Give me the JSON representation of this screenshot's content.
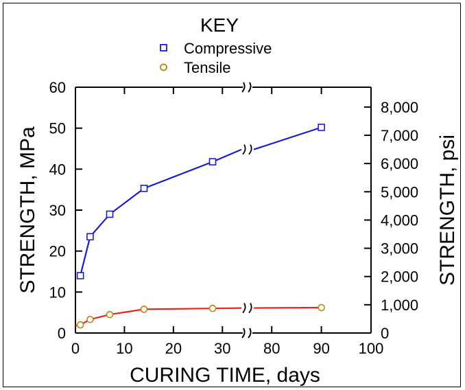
{
  "chart_data": {
    "type": "line",
    "legend": {
      "title": "KEY",
      "placement": "top-center",
      "entries": [
        {
          "label": "Compressive",
          "marker": "square",
          "color": "#1a1ad6"
        },
        {
          "label": "Tensile",
          "marker": "circle",
          "color": "#b8860b"
        }
      ]
    },
    "xlabel": "CURING TIME, days",
    "ylabel_left": "STRENGTH, MPa",
    "ylabel_right": "STRENGTH, psi",
    "x_axis_break": true,
    "xticks": [
      {
        "value": 0,
        "label": "0"
      },
      {
        "value": 10,
        "label": "10"
      },
      {
        "value": 20,
        "label": "20"
      },
      {
        "value": 30,
        "label": "30"
      },
      {
        "value": 80,
        "label": "80"
      },
      {
        "value": 90,
        "label": "90"
      },
      {
        "value": 100,
        "label": "100"
      }
    ],
    "ylim_left": [
      0,
      60
    ],
    "yticks_left": [
      "0",
      "10",
      "20",
      "30",
      "40",
      "50",
      "60"
    ],
    "yticks_right": [
      "0",
      "1,000",
      "2,000",
      "3,000",
      "4,000",
      "5,000",
      "6,000",
      "7,000",
      "8,000"
    ],
    "series": [
      {
        "name": "Compressive",
        "line_color": "#1a1ad6",
        "marker_color": "#1a1ad6",
        "x": [
          1,
          3,
          7,
          14,
          28,
          90
        ],
        "y": [
          14,
          23.5,
          29,
          35.3,
          41.8,
          50.2
        ],
        "break_point": 44.8
      },
      {
        "name": "Tensile",
        "line_color": "#e8241c",
        "marker_color": "#b8860b",
        "x": [
          1,
          3,
          7,
          14,
          28,
          90
        ],
        "y": [
          2.0,
          3.3,
          4.5,
          5.8,
          6.0,
          6.2
        ],
        "start": 1.8,
        "break_point": 6.1
      }
    ]
  }
}
